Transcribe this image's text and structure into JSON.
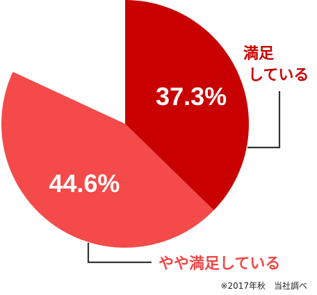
{
  "chart_data": {
    "type": "pie",
    "slices": [
      {
        "label": "満足している",
        "label_lines": [
          "満足",
          "している"
        ],
        "value": 37.3,
        "value_text": "37.3%",
        "color": "#c90000",
        "label_color": "#c80000"
      },
      {
        "label": "やや満足している",
        "label_lines": [
          "やや満足している"
        ],
        "value": 44.6,
        "value_text": "44.6%",
        "color": "#f44a4a",
        "label_color": "#f04848"
      }
    ],
    "start": "top",
    "direction": "clockwise",
    "note": "※2017年秋　当社調べ"
  }
}
